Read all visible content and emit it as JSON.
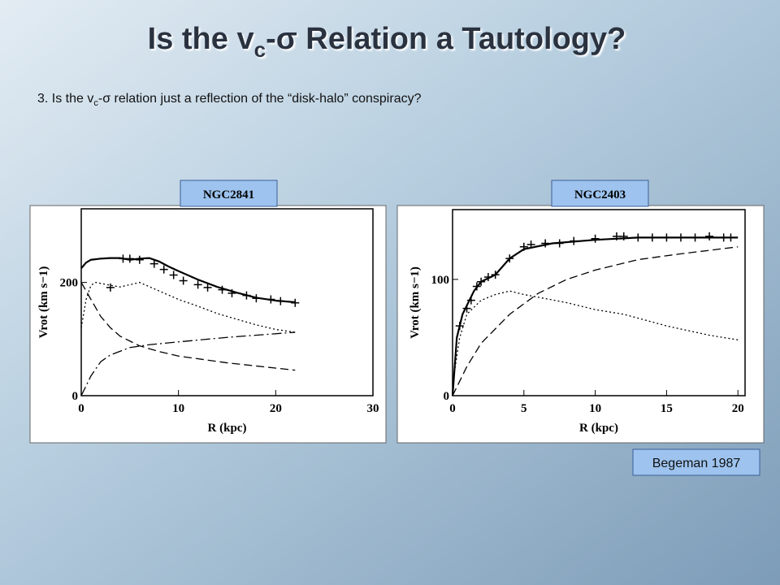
{
  "slide": {
    "title": [
      "Is the v",
      "c",
      "-σ Relation a Tautology?"
    ],
    "question": [
      "3. Is the v",
      "c",
      "-σ relation just a reflection of the “disk-halo” conspiracy?"
    ],
    "credit": "Begeman 1987"
  },
  "chart_data": [
    {
      "type": "line",
      "title": "NGC2841",
      "x_label": "R (kpc)",
      "y_label": "Vrot (km s−1)",
      "xlim": [
        0,
        30
      ],
      "ylim": [
        0,
        330
      ],
      "xticks": [
        0,
        10,
        20,
        30
      ],
      "yticks": [
        0,
        200
      ],
      "series": [
        {
          "style": "solid",
          "color": "#000000",
          "x": [
            0,
            0.5,
            1,
            2,
            3,
            4,
            5,
            6,
            7,
            8,
            9,
            10,
            12,
            14,
            16,
            18,
            20,
            22
          ],
          "values": [
            225,
            235,
            240,
            242,
            243,
            243,
            240,
            242,
            243,
            237,
            228,
            220,
            205,
            192,
            182,
            173,
            168,
            165
          ]
        },
        {
          "style": "markers",
          "color": "#000000",
          "x": [
            3,
            4.3,
            5,
            6,
            7.5,
            8.5,
            9.5,
            10.5,
            12,
            13,
            14.5,
            15.5,
            17,
            18,
            19.5,
            20.5,
            22
          ],
          "values": [
            191,
            242,
            242,
            240,
            233,
            223,
            213,
            203,
            196,
            191,
            187,
            181,
            177,
            172,
            170,
            167,
            164
          ]
        },
        {
          "style": "dotted",
          "color": "#000000",
          "x": [
            0,
            0.5,
            1,
            1.5,
            3,
            4,
            6,
            8,
            10,
            12,
            14,
            16,
            18,
            20,
            22
          ],
          "values": [
            120,
            170,
            195,
            200,
            195,
            192,
            200,
            185,
            170,
            158,
            145,
            135,
            125,
            117,
            112
          ]
        },
        {
          "style": "dashed",
          "color": "#000000",
          "x": [
            0,
            1,
            2,
            3,
            4,
            6,
            8,
            10,
            15,
            22
          ],
          "values": [
            200,
            170,
            140,
            120,
            105,
            88,
            78,
            70,
            58,
            45
          ]
        },
        {
          "style": "dashdot",
          "color": "#000000",
          "x": [
            0,
            1,
            2,
            3,
            5,
            7,
            10,
            15,
            22
          ],
          "values": [
            0,
            35,
            60,
            72,
            85,
            90,
            95,
            103,
            112
          ]
        }
      ]
    },
    {
      "type": "line",
      "title": "NGC2403",
      "x_label": "R (kpc)",
      "y_label": "Vrot (km s−1)",
      "xlim": [
        0,
        20.5
      ],
      "ylim": [
        0,
        160
      ],
      "xticks": [
        0,
        5,
        10,
        15,
        20
      ],
      "yticks": [
        0,
        100
      ],
      "series": [
        {
          "style": "solid",
          "color": "#000000",
          "x": [
            0,
            0.3,
            0.7,
            1.5,
            2,
            3,
            4,
            5,
            7,
            10,
            13,
            16,
            20
          ],
          "values": [
            0,
            50,
            70,
            90,
            98,
            104,
            118,
            126,
            131,
            134,
            136,
            136,
            136
          ]
        },
        {
          "style": "markers",
          "color": "#000000",
          "x": [
            0.5,
            1,
            1.3,
            1.7,
            2,
            2.5,
            3,
            4,
            5,
            5.5,
            6.5,
            7.5,
            8.5,
            10,
            11.5,
            12,
            13,
            14,
            15,
            16,
            17,
            18,
            19,
            19.5
          ],
          "values": [
            60,
            75,
            82,
            94,
            98,
            102,
            104,
            118,
            128,
            130,
            131,
            131,
            133,
            135,
            137,
            137,
            136,
            136,
            136,
            136,
            136,
            137,
            136,
            136
          ]
        },
        {
          "style": "dotted",
          "color": "#000000",
          "x": [
            0,
            0.5,
            1,
            2,
            3,
            4,
            5,
            8,
            10,
            12,
            15,
            18,
            20
          ],
          "values": [
            10,
            50,
            70,
            82,
            87,
            90,
            87,
            80,
            74,
            70,
            60,
            52,
            48
          ]
        },
        {
          "style": "dashed",
          "color": "#000000",
          "x": [
            0,
            1,
            2,
            4,
            6,
            8,
            10,
            13,
            16,
            20
          ],
          "values": [
            0,
            25,
            45,
            70,
            88,
            100,
            108,
            117,
            122,
            128
          ]
        }
      ]
    }
  ]
}
